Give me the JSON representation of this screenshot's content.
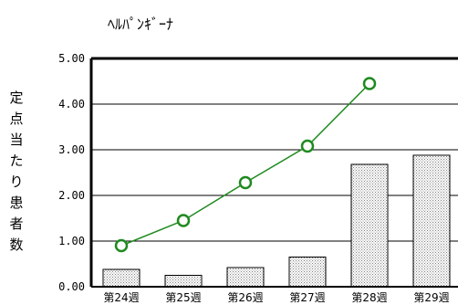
{
  "chart_data": {
    "type": "bar",
    "title": "ﾍﾙﾊﾟﾝｷﾞｰﾅ",
    "ylabel": "定点当たり患者数",
    "xlabel": "",
    "categories": [
      "第24週",
      "第25週",
      "第26週",
      "第27週",
      "第28週",
      "第29週"
    ],
    "ylim": [
      0,
      5
    ],
    "yticks": [
      "0.00",
      "1.00",
      "2.00",
      "3.00",
      "4.00",
      "5.00"
    ],
    "grid": true,
    "legend": "none",
    "series": [
      {
        "type": "bar",
        "values": [
          0.38,
          0.25,
          0.42,
          0.65,
          2.68,
          2.88
        ]
      },
      {
        "type": "line",
        "values": [
          0.9,
          1.45,
          2.28,
          3.08,
          4.45,
          null
        ]
      }
    ],
    "colors": {
      "bar_fill": "#bdbdbd",
      "bar_edge": "#000000",
      "line": "#1f8a1f",
      "marker": "#1f8a1f",
      "axis": "#000000"
    }
  }
}
